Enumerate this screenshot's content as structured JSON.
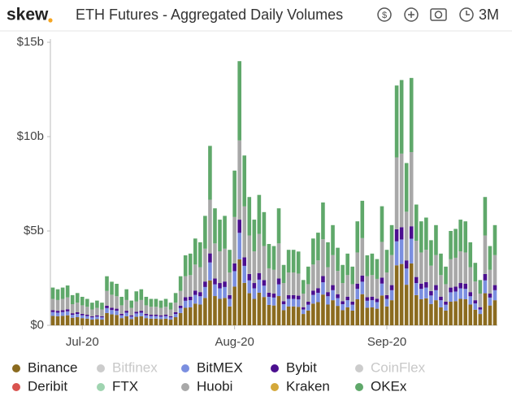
{
  "header": {
    "brand": "skew",
    "title": "ETH Futures - Aggregated Daily Volumes",
    "range_button": "3M"
  },
  "chart_data": {
    "type": "stacked-bar",
    "categories": [
      null,
      null,
      null,
      null,
      null,
      null,
      "Jul-20",
      null,
      null,
      null,
      null,
      null,
      null,
      null,
      null,
      null,
      null,
      null,
      null,
      null,
      null,
      null,
      null,
      null,
      null,
      null,
      null,
      null,
      null,
      null,
      null,
      null,
      null,
      null,
      null,
      null,
      null,
      "Aug-20",
      null,
      null,
      null,
      null,
      null,
      null,
      null,
      null,
      null,
      null,
      null,
      null,
      null,
      null,
      null,
      null,
      null,
      null,
      null,
      null,
      null,
      null,
      null,
      null,
      null,
      null,
      null,
      null,
      null,
      null,
      "Sep-20",
      null,
      null,
      null,
      null,
      null,
      null,
      null,
      null,
      null,
      null,
      null,
      null,
      null,
      null,
      null,
      null,
      null,
      null,
      null,
      null,
      null,
      null
    ],
    "ylim": [
      0,
      15
    ],
    "yticks": [
      {
        "value": 0,
        "label": "$0"
      },
      {
        "value": 5,
        "label": "$5b"
      },
      {
        "value": 10,
        "label": "$10b"
      },
      {
        "value": 15,
        "label": "$15b"
      }
    ],
    "grid": false,
    "series": [
      {
        "name": "Binance",
        "color": "#8b6b1f",
        "values": [
          0.5,
          0.48,
          0.5,
          0.53,
          0.4,
          0.43,
          0.38,
          0.35,
          0.3,
          0.33,
          0.3,
          0.65,
          0.58,
          0.55,
          0.38,
          0.48,
          0.33,
          0.45,
          0.48,
          0.38,
          0.35,
          0.35,
          0.33,
          0.35,
          0.3,
          0.43,
          0.65,
          0.93,
          0.95,
          1.15,
          1.1,
          1.45,
          2.38,
          1.55,
          1.4,
          1.45,
          1.0,
          2.05,
          3.5,
          2.25,
          1.7,
          1.4,
          1.73,
          1.5,
          1.08,
          1.05,
          1.55,
          0.8,
          1.0,
          1.0,
          0.98,
          0.6,
          0.78,
          1.15,
          1.23,
          1.63,
          1.1,
          1.33,
          1.03,
          0.8,
          0.95,
          0.78,
          1.38,
          1.65,
          0.93,
          0.95,
          0.88,
          1.58,
          1.0,
          1.33,
          3.18,
          3.25,
          2.15,
          3.28,
          1.6,
          1.38,
          1.43,
          1.13,
          1.33,
          0.95,
          0.78,
          1.25,
          1.28,
          1.4,
          1.38,
          1.1,
          0.83,
          0.6,
          1.7,
          1.05,
          1.33
        ]
      },
      {
        "name": "Bitfinex",
        "color": "#cccccc",
        "hidden": true
      },
      {
        "name": "BitMEX",
        "color": "#7b8fe0",
        "values": [
          0.2,
          0.19,
          0.2,
          0.21,
          0.16,
          0.17,
          0.15,
          0.14,
          0.12,
          0.13,
          0.12,
          0.26,
          0.23,
          0.22,
          0.15,
          0.19,
          0.13,
          0.18,
          0.19,
          0.15,
          0.14,
          0.14,
          0.13,
          0.14,
          0.12,
          0.17,
          0.26,
          0.37,
          0.38,
          0.46,
          0.44,
          0.58,
          0.95,
          0.62,
          0.56,
          0.58,
          0.4,
          0.82,
          1.4,
          0.9,
          0.68,
          0.56,
          0.69,
          0.6,
          0.43,
          0.42,
          0.62,
          0.32,
          0.4,
          0.4,
          0.39,
          0.24,
          0.31,
          0.46,
          0.49,
          0.65,
          0.44,
          0.53,
          0.41,
          0.32,
          0.38,
          0.31,
          0.55,
          0.66,
          0.37,
          0.38,
          0.35,
          0.63,
          0.4,
          0.53,
          1.27,
          1.3,
          0.86,
          1.31,
          0.64,
          0.55,
          0.57,
          0.45,
          0.53,
          0.38,
          0.31,
          0.5,
          0.51,
          0.56,
          0.55,
          0.44,
          0.33,
          0.24,
          0.68,
          0.42,
          0.53
        ]
      },
      {
        "name": "Bybit",
        "color": "#4b0f8f",
        "values": [
          0.1,
          0.1,
          0.1,
          0.11,
          0.08,
          0.09,
          0.08,
          0.07,
          0.06,
          0.07,
          0.06,
          0.13,
          0.12,
          0.11,
          0.08,
          0.1,
          0.07,
          0.09,
          0.1,
          0.08,
          0.07,
          0.07,
          0.07,
          0.07,
          0.06,
          0.09,
          0.13,
          0.19,
          0.19,
          0.23,
          0.22,
          0.29,
          0.48,
          0.31,
          0.28,
          0.29,
          0.2,
          0.41,
          0.7,
          0.45,
          0.34,
          0.28,
          0.35,
          0.3,
          0.22,
          0.21,
          0.31,
          0.16,
          0.2,
          0.2,
          0.2,
          0.12,
          0.16,
          0.23,
          0.25,
          0.33,
          0.22,
          0.27,
          0.21,
          0.16,
          0.19,
          0.16,
          0.28,
          0.33,
          0.19,
          0.19,
          0.18,
          0.32,
          0.2,
          0.27,
          0.64,
          0.65,
          0.43,
          0.66,
          0.32,
          0.28,
          0.29,
          0.23,
          0.27,
          0.19,
          0.16,
          0.25,
          0.26,
          0.28,
          0.28,
          0.22,
          0.17,
          0.12,
          0.34,
          0.21,
          0.27
        ]
      },
      {
        "name": "CoinFlex",
        "color": "#cccccc",
        "hidden": true
      },
      {
        "name": "Deribit",
        "color": "#d9534f"
      },
      {
        "name": "FTX",
        "color": "#9fd4b0"
      },
      {
        "name": "Huobi",
        "color": "#a8a8a8",
        "values": [
          0.6,
          0.57,
          0.6,
          0.63,
          0.48,
          0.51,
          0.45,
          0.42,
          0.36,
          0.39,
          0.36,
          0.78,
          0.69,
          0.66,
          0.45,
          0.57,
          0.39,
          0.54,
          0.57,
          0.45,
          0.42,
          0.42,
          0.39,
          0.42,
          0.36,
          0.51,
          0.78,
          1.11,
          1.14,
          1.38,
          1.32,
          1.74,
          2.85,
          1.86,
          1.68,
          1.74,
          1.2,
          2.46,
          4.2,
          2.7,
          2.04,
          1.68,
          2.07,
          1.8,
          1.29,
          1.26,
          1.86,
          0.96,
          1.2,
          1.2,
          1.17,
          0.72,
          0.93,
          1.38,
          1.47,
          1.95,
          1.32,
          1.59,
          1.23,
          0.96,
          1.14,
          0.93,
          1.65,
          1.98,
          1.11,
          1.14,
          1.05,
          1.89,
          1.2,
          1.59,
          3.81,
          3.9,
          2.58,
          3.93,
          1.92,
          1.65,
          1.71,
          1.35,
          1.59,
          1.14,
          0.93,
          1.5,
          1.53,
          1.68,
          1.65,
          1.32,
          0.99,
          0.72,
          2.04,
          1.26,
          1.59
        ]
      },
      {
        "name": "Kraken",
        "color": "#d4a83a"
      },
      {
        "name": "OKEx",
        "color": "#5fa86a",
        "values": [
          0.6,
          0.57,
          0.6,
          0.63,
          0.48,
          0.51,
          0.45,
          0.42,
          0.36,
          0.39,
          0.36,
          0.78,
          0.69,
          0.66,
          0.45,
          0.57,
          0.39,
          0.54,
          0.57,
          0.45,
          0.42,
          0.42,
          0.39,
          0.42,
          0.36,
          0.51,
          0.78,
          1.11,
          1.14,
          1.38,
          1.32,
          1.74,
          2.85,
          1.86,
          1.68,
          1.74,
          1.2,
          2.46,
          4.2,
          2.7,
          2.04,
          1.68,
          2.07,
          1.8,
          1.29,
          1.26,
          1.86,
          0.96,
          1.2,
          1.2,
          1.17,
          0.72,
          0.93,
          1.38,
          1.47,
          1.95,
          1.32,
          1.59,
          1.23,
          0.96,
          1.14,
          0.93,
          1.65,
          1.98,
          1.11,
          1.14,
          1.05,
          1.89,
          1.2,
          1.59,
          3.81,
          3.9,
          2.58,
          3.93,
          1.92,
          1.65,
          1.71,
          1.35,
          1.59,
          1.14,
          0.93,
          1.5,
          1.53,
          1.68,
          1.65,
          1.32,
          0.99,
          0.72,
          2.04,
          1.26,
          1.59
        ]
      }
    ]
  }
}
